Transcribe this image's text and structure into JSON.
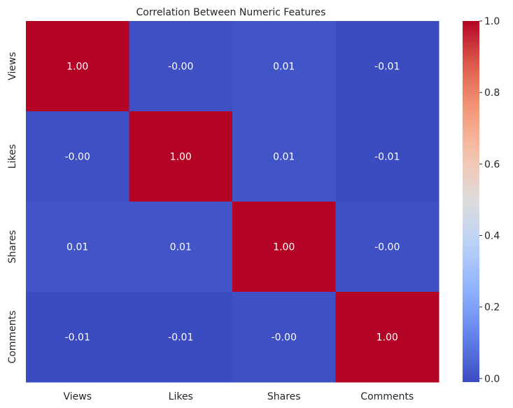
{
  "chart_data": {
    "type": "heatmap",
    "title": "Correlation Between Numeric Features",
    "xlabel": "",
    "ylabel": "",
    "x_categories": [
      "Views",
      "Likes",
      "Shares",
      "Comments"
    ],
    "y_categories": [
      "Views",
      "Likes",
      "Shares",
      "Comments"
    ],
    "values": [
      [
        1.0,
        -0.0,
        0.01,
        -0.01
      ],
      [
        -0.0,
        1.0,
        0.01,
        -0.01
      ],
      [
        0.01,
        0.01,
        1.0,
        -0.0
      ],
      [
        -0.01,
        -0.01,
        -0.0,
        1.0
      ]
    ],
    "annotations": [
      [
        "1.00",
        "-0.00",
        "0.01",
        "-0.01"
      ],
      [
        "-0.00",
        "1.00",
        "0.01",
        "-0.01"
      ],
      [
        "0.01",
        "0.01",
        "1.00",
        "-0.00"
      ],
      [
        "-0.01",
        "-0.01",
        "-0.00",
        "1.00"
      ]
    ],
    "colormap": "coolwarm",
    "color_range": [
      -0.01,
      1.0
    ],
    "colorbar_ticks": [
      0.0,
      0.2,
      0.4,
      0.6,
      0.8,
      1.0
    ],
    "colorbar_tick_labels": [
      "0.0",
      "0.2",
      "0.4",
      "0.6",
      "0.8",
      "1.0"
    ],
    "colorbar_position": "right",
    "grid": false
  }
}
